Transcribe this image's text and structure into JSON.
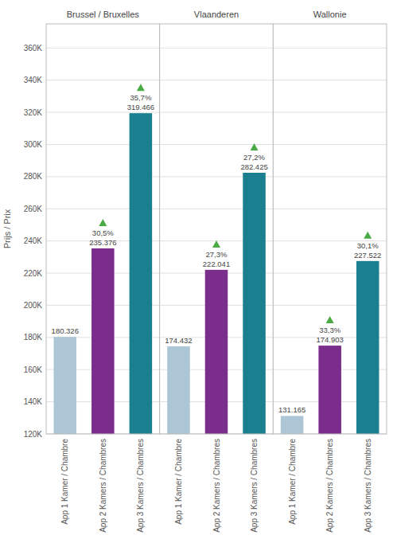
{
  "chart_data": [
    {
      "type": "bar",
      "title": "Brussel / Bruxelles",
      "categories": [
        "App 1 Kamer / Chambre",
        "App 2 Kamers / Chambres",
        "App 3 Kamers / Chambres"
      ],
      "values": [
        180326,
        235376,
        319466
      ],
      "value_labels": [
        "180.326",
        "235.376",
        "319.466"
      ],
      "data_labels": true,
      "colors": [
        "#adc6d6",
        "#7b2d8b",
        "#1a7f8e"
      ],
      "changes": [
        null,
        30.5,
        35.7
      ],
      "change_labels": [
        null,
        "30,5%",
        "35,7%"
      ],
      "ylabel": "Prijs / Prix",
      "ylim": [
        120000,
        375000
      ],
      "yticks": [
        {
          "value": 120000,
          "label": "120K"
        },
        {
          "value": 140000,
          "label": "140K"
        },
        {
          "value": 160000,
          "label": "160K"
        },
        {
          "value": 180000,
          "label": "180K"
        },
        {
          "value": 200000,
          "label": "200K"
        },
        {
          "value": 220000,
          "label": "220K"
        },
        {
          "value": 240000,
          "label": "240K"
        },
        {
          "value": 260000,
          "label": "260K"
        },
        {
          "value": 280000,
          "label": "280K"
        },
        {
          "value": 300000,
          "label": "300K"
        },
        {
          "value": 320000,
          "label": "320K"
        },
        {
          "value": 340000,
          "label": "340K"
        },
        {
          "value": 360000,
          "label": "360K"
        }
      ],
      "grid": true
    },
    {
      "type": "bar",
      "title": "Vlaanderen",
      "categories": [
        "App 1 Kamer / Chambre",
        "App 2 Kamers / Chambres",
        "App 3 Kamers / Chambres"
      ],
      "values": [
        174432,
        222041,
        282425
      ],
      "value_labels": [
        "174.432",
        "222.041",
        "282.425"
      ],
      "data_labels": true,
      "colors": [
        "#adc6d6",
        "#7b2d8b",
        "#1a7f8e"
      ],
      "changes": [
        null,
        27.3,
        27.2
      ],
      "change_labels": [
        null,
        "27,3%",
        "27,2%"
      ],
      "ylim": [
        120000,
        375000
      ],
      "yticks": [
        {
          "value": 120000,
          "label": "120K"
        },
        {
          "value": 140000,
          "label": "140K"
        },
        {
          "value": 160000,
          "label": "160K"
        },
        {
          "value": 180000,
          "label": "180K"
        },
        {
          "value": 200000,
          "label": "200K"
        },
        {
          "value": 220000,
          "label": "220K"
        },
        {
          "value": 240000,
          "label": "240K"
        },
        {
          "value": 260000,
          "label": "260K"
        },
        {
          "value": 280000,
          "label": "280K"
        },
        {
          "value": 300000,
          "label": "300K"
        },
        {
          "value": 320000,
          "label": "320K"
        },
        {
          "value": 340000,
          "label": "340K"
        },
        {
          "value": 360000,
          "label": "360K"
        }
      ],
      "grid": true,
      "tick_labels": "x"
    },
    {
      "type": "bar",
      "title": "Wallonie",
      "categories": [
        "App 1 Kamer / Chambre",
        "App 2 Kamers / Chambres",
        "App 3 Kamers / Chambres"
      ],
      "values": [
        131165,
        174903,
        227522
      ],
      "value_labels": [
        "131.165",
        "174.903",
        "227.522"
      ],
      "data_labels": true,
      "colors": [
        "#adc6d6",
        "#7b2d8b",
        "#1a7f8e"
      ],
      "changes": [
        null,
        33.3,
        30.1
      ],
      "change_labels": [
        null,
        "33,3%",
        "30,1%"
      ],
      "ylim": [
        120000,
        375000
      ],
      "yticks": [
        {
          "value": 120000,
          "label": "120K"
        },
        {
          "value": 140000,
          "label": "140K"
        },
        {
          "value": 160000,
          "label": "160K"
        },
        {
          "value": 180000,
          "label": "180K"
        },
        {
          "value": 200000,
          "label": "200K"
        },
        {
          "value": 220000,
          "label": "220K"
        },
        {
          "value": 240000,
          "label": "240K"
        },
        {
          "value": 260000,
          "label": "260K"
        },
        {
          "value": 280000,
          "label": "280K"
        },
        {
          "value": 300000,
          "label": "300K"
        },
        {
          "value": 320000,
          "label": "320K"
        },
        {
          "value": 340000,
          "label": "340K"
        },
        {
          "value": 360000,
          "label": "360K"
        }
      ],
      "grid": true,
      "tick_labels": "x"
    }
  ]
}
